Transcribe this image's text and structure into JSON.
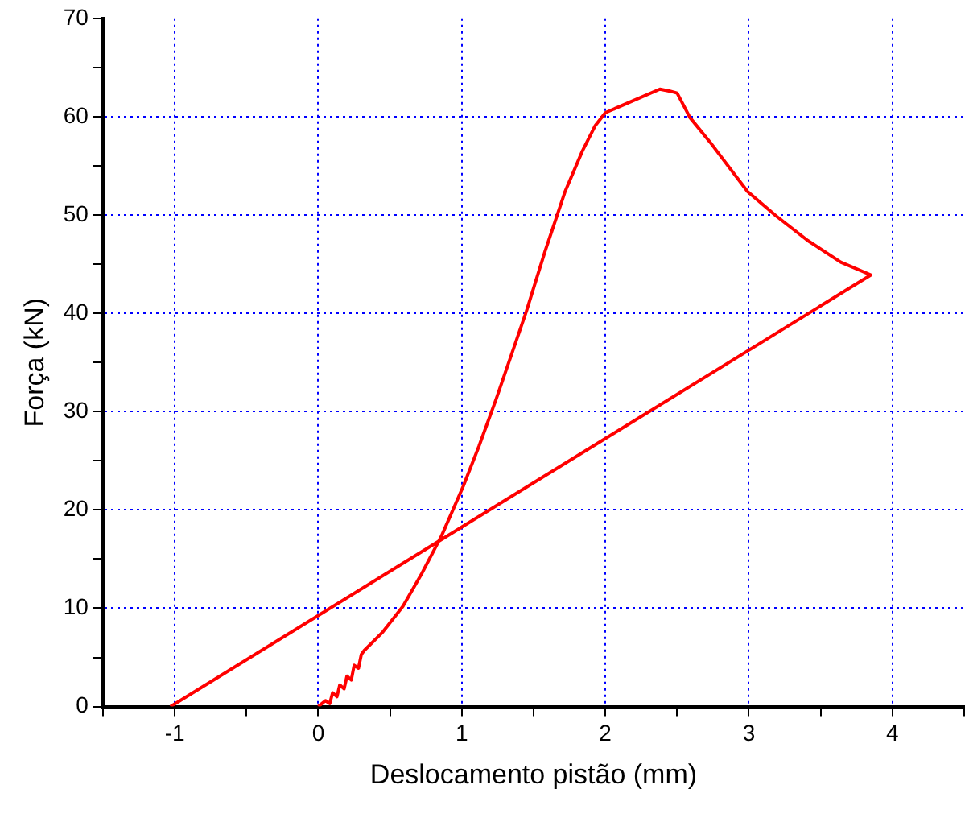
{
  "chart_data": {
    "type": "line",
    "xlabel": "Deslocamento pistão (mm)",
    "ylabel": "Força (kN)",
    "xlim": [
      -1.5,
      4.5
    ],
    "ylim": [
      0,
      70
    ],
    "xticks": [
      {
        "value": -1.5,
        "label": null
      },
      -1,
      {
        "value": -0.5,
        "label": null
      },
      0,
      {
        "value": 0.5,
        "label": null
      },
      1,
      {
        "value": 1.5,
        "label": null
      },
      2,
      {
        "value": 2.5,
        "label": null
      },
      3,
      {
        "value": 3.5,
        "label": null
      },
      4,
      {
        "value": 4.5,
        "label": null
      }
    ],
    "yticks": [
      0,
      {
        "value": 5,
        "label": null
      },
      10,
      {
        "value": 15,
        "label": null
      },
      20,
      {
        "value": 25,
        "label": null
      },
      30,
      {
        "value": 35,
        "label": null
      },
      40,
      {
        "value": 45,
        "label": null
      },
      50,
      {
        "value": 55,
        "label": null
      },
      60,
      {
        "value": 65,
        "label": null
      },
      70
    ],
    "grid": true,
    "marker": "none",
    "line_style": "solid",
    "legend": false,
    "series": [
      {
        "color": "#ff0000",
        "x": [
          0,
          0.05,
          0.08,
          0.1,
          0.13,
          0.15,
          0.18,
          0.2,
          0.23,
          0.25,
          0.28,
          0.3,
          0.32,
          0.45,
          0.59,
          0.72,
          0.86,
          1.01,
          1.12,
          1.24,
          1.45,
          1.58,
          1.72,
          1.84,
          1.93,
          2.0,
          2.19,
          2.38,
          2.45,
          2.5,
          2.59,
          2.73,
          2.99,
          3.19,
          3.41,
          3.64,
          3.85,
          -1.03
        ],
        "values": [
          0,
          0.6,
          0.3,
          1.4,
          1.0,
          2.2,
          1.8,
          3.1,
          2.7,
          4.2,
          3.9,
          5.3,
          5.7,
          7.6,
          10.2,
          13.5,
          17.4,
          22.4,
          26.5,
          31.3,
          40.2,
          46.3,
          52.4,
          56.5,
          59.1,
          60.4,
          61.6,
          62.8,
          62.6,
          62.4,
          59.9,
          57.4,
          52.4,
          49.9,
          47.4,
          45.2,
          43.9,
          0
        ]
      }
    ]
  }
}
